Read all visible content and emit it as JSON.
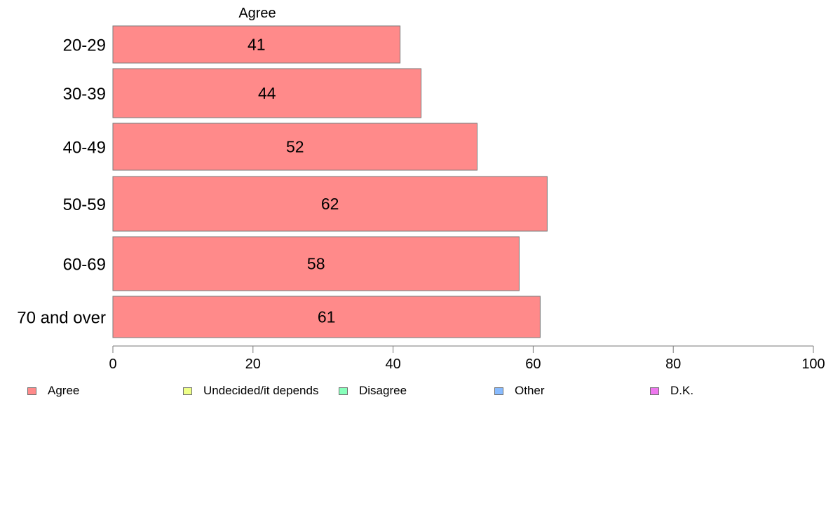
{
  "chart_data": {
    "type": "bar",
    "orientation": "horizontal",
    "title": "Agree",
    "categories": [
      "20-29",
      "30-39",
      "40-49",
      "50-59",
      "60-69",
      "70 and over"
    ],
    "series": [
      {
        "name": "Agree",
        "color": "#ff8a8a",
        "values": [
          41,
          44,
          52,
          62,
          58,
          61
        ]
      }
    ],
    "xlim": [
      0,
      100
    ],
    "xticks": [
      "0",
      "20",
      "40",
      "60",
      "80",
      "100"
    ],
    "grid": false,
    "legend_position": "bottom",
    "legend": [
      {
        "label": "Agree",
        "color": "#ff8a8a"
      },
      {
        "label": "Undecided/it depends",
        "color": "#eeff88"
      },
      {
        "label": "Disagree",
        "color": "#88ffbb"
      },
      {
        "label": "Other",
        "color": "#88bbff"
      },
      {
        "label": "D.K.",
        "color": "#ee77ee"
      }
    ]
  }
}
